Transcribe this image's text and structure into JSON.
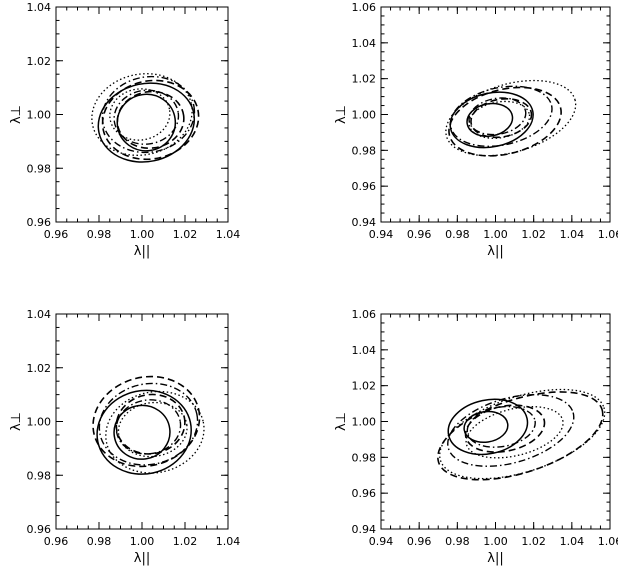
{
  "chart_data": [
    {
      "type": "contour",
      "xlabel": "λ||",
      "ylabel": "λ⊥",
      "xlim": [
        0.96,
        1.04
      ],
      "ylim": [
        0.96,
        1.04
      ],
      "xticks": [
        "0.96",
        "0.98",
        "1.00",
        "1.02",
        "1.04"
      ],
      "yticks": [
        "0.96",
        "0.98",
        "1.00",
        "1.02",
        "1.04"
      ],
      "grid": false,
      "series": [
        {
          "style": "solid",
          "contours": [
            {
              "cx": 1.002,
              "cy": 0.997,
              "rx": 0.0135,
              "ry": 0.0105,
              "tilt": -8
            },
            {
              "cx": 1.002,
              "cy": 0.997,
              "rx": 0.0225,
              "ry": 0.0145,
              "tilt": -12
            }
          ]
        },
        {
          "style": "dashed",
          "contours": [
            {
              "cx": 1.004,
              "cy": 0.998,
              "rx": 0.0155,
              "ry": 0.0105,
              "tilt": -8
            },
            {
              "cx": 1.004,
              "cy": 0.998,
              "rx": 0.0225,
              "ry": 0.0145,
              "tilt": -12
            }
          ]
        },
        {
          "style": "dotted",
          "contours": [
            {
              "cx": 0.999,
              "cy": 1.0,
              "rx": 0.014,
              "ry": 0.0095,
              "tilt": -8
            },
            {
              "cx": 1.0,
              "cy": 1.0,
              "rx": 0.0235,
              "ry": 0.015,
              "tilt": -12
            }
          ]
        },
        {
          "style": "dashdot",
          "contours": [
            {
              "cx": 1.002,
              "cy": 0.999,
              "rx": 0.015,
              "ry": 0.01,
              "tilt": -8
            },
            {
              "cx": 1.003,
              "cy": 1.0,
              "rx": 0.0215,
              "ry": 0.014,
              "tilt": -10
            }
          ]
        }
      ]
    },
    {
      "type": "contour",
      "xlabel": "λ||",
      "ylabel": "λ⊥",
      "xlim": [
        0.94,
        1.06
      ],
      "ylim": [
        0.94,
        1.06
      ],
      "xticks": [
        "0.94",
        "0.96",
        "0.98",
        "1.00",
        "1.02",
        "1.04",
        "1.06"
      ],
      "yticks": [
        "0.94",
        "0.96",
        "0.98",
        "1.00",
        "1.02",
        "1.04",
        "1.06"
      ],
      "grid": false,
      "series": [
        {
          "style": "solid",
          "contours": [
            {
              "cx": 0.997,
              "cy": 0.997,
              "rx": 0.012,
              "ry": 0.009,
              "tilt": -10
            },
            {
              "cx": 0.998,
              "cy": 0.997,
              "rx": 0.022,
              "ry": 0.015,
              "tilt": -12
            }
          ]
        },
        {
          "style": "dashed",
          "contours": [
            {
              "cx": 1.003,
              "cy": 0.998,
              "rx": 0.016,
              "ry": 0.0105,
              "tilt": -10
            },
            {
              "cx": 1.005,
              "cy": 0.996,
              "rx": 0.03,
              "ry": 0.018,
              "tilt": -14
            }
          ]
        },
        {
          "style": "dotted",
          "contours": [
            {
              "cx": 1.002,
              "cy": 0.997,
              "rx": 0.016,
              "ry": 0.01,
              "tilt": -10
            },
            {
              "cx": 1.008,
              "cy": 0.998,
              "rx": 0.035,
              "ry": 0.019,
              "tilt": -16
            }
          ]
        },
        {
          "style": "dashdot",
          "contours": [
            {
              "cx": 1.001,
              "cy": 0.999,
              "rx": 0.015,
              "ry": 0.01,
              "tilt": -10
            },
            {
              "cx": 1.003,
              "cy": 0.999,
              "rx": 0.027,
              "ry": 0.016,
              "tilt": -12
            }
          ]
        }
      ]
    },
    {
      "type": "contour",
      "xlabel": "λ||",
      "ylabel": "λ⊥",
      "xlim": [
        0.96,
        1.04
      ],
      "ylim": [
        0.96,
        1.04
      ],
      "xticks": [
        "0.96",
        "0.98",
        "1.00",
        "1.02",
        "1.04"
      ],
      "yticks": [
        "0.96",
        "0.98",
        "1.00",
        "1.02",
        "1.04"
      ],
      "grid": false,
      "series": [
        {
          "style": "solid",
          "contours": [
            {
              "cx": 1.0,
              "cy": 0.996,
              "rx": 0.013,
              "ry": 0.01,
              "tilt": -8
            },
            {
              "cx": 1.001,
              "cy": 0.996,
              "rx": 0.022,
              "ry": 0.0155,
              "tilt": -12
            }
          ]
        },
        {
          "style": "dashed",
          "contours": [
            {
              "cx": 1.004,
              "cy": 0.999,
              "rx": 0.016,
              "ry": 0.011,
              "tilt": -10
            },
            {
              "cx": 1.002,
              "cy": 1.0,
              "rx": 0.025,
              "ry": 0.0165,
              "tilt": -14
            }
          ]
        },
        {
          "style": "dotted",
          "contours": [
            {
              "cx": 1.005,
              "cy": 0.997,
              "rx": 0.016,
              "ry": 0.01,
              "tilt": -8
            },
            {
              "cx": 1.006,
              "cy": 0.996,
              "rx": 0.023,
              "ry": 0.015,
              "tilt": -12
            }
          ]
        },
        {
          "style": "dashdot",
          "contours": [
            {
              "cx": 1.003,
              "cy": 0.998,
              "rx": 0.015,
              "ry": 0.01,
              "tilt": -10
            },
            {
              "cx": 1.003,
              "cy": 0.999,
              "rx": 0.023,
              "ry": 0.015,
              "tilt": -12
            }
          ]
        }
      ]
    },
    {
      "type": "contour",
      "xlabel": "λ||",
      "ylabel": "λ⊥",
      "xlim": [
        0.94,
        1.06
      ],
      "ylim": [
        0.94,
        1.06
      ],
      "xticks": [
        "0.94",
        "0.96",
        "0.98",
        "1.00",
        "1.02",
        "1.04",
        "1.06"
      ],
      "yticks": [
        "0.94",
        "0.96",
        "0.98",
        "1.00",
        "1.02",
        "1.04",
        "1.06"
      ],
      "grid": false,
      "series": [
        {
          "style": "solid",
          "contours": [
            {
              "cx": 0.995,
              "cy": 0.997,
              "rx": 0.0115,
              "ry": 0.0085,
              "tilt": -8
            },
            {
              "cx": 0.996,
              "cy": 0.997,
              "rx": 0.021,
              "ry": 0.015,
              "tilt": -12
            }
          ]
        },
        {
          "style": "dashed",
          "contours": [
            {
              "cx": 1.005,
              "cy": 0.996,
              "rx": 0.021,
              "ry": 0.0125,
              "tilt": -12
            },
            {
              "cx": 1.013,
              "cy": 0.992,
              "rx": 0.045,
              "ry": 0.0205,
              "tilt": -18
            }
          ]
        },
        {
          "style": "dotted",
          "contours": [
            {
              "cx": 1.01,
              "cy": 0.994,
              "rx": 0.026,
              "ry": 0.013,
              "tilt": -14
            },
            {
              "cx": 1.014,
              "cy": 0.993,
              "rx": 0.045,
              "ry": 0.021,
              "tilt": -18
            }
          ]
        },
        {
          "style": "dashdot",
          "contours": [
            {
              "cx": 1.003,
              "cy": 0.997,
              "rx": 0.018,
              "ry": 0.011,
              "tilt": -10
            },
            {
              "cx": 1.008,
              "cy": 0.995,
              "rx": 0.034,
              "ry": 0.018,
              "tilt": -16
            }
          ]
        }
      ]
    }
  ]
}
